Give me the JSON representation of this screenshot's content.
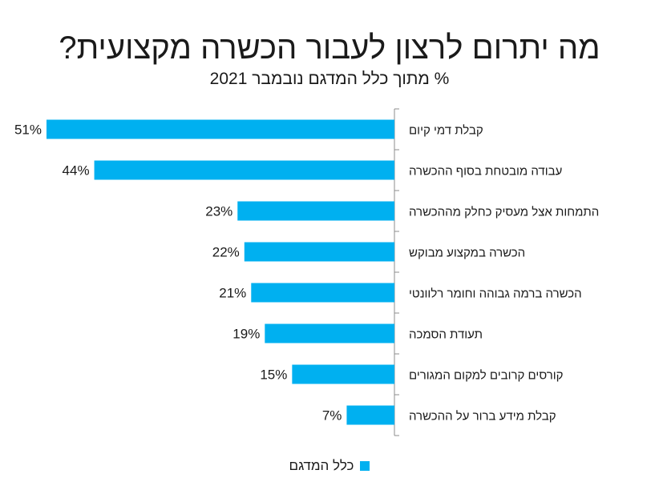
{
  "chart_data": {
    "type": "bar",
    "orientation": "horizontal",
    "title": "מה יתרום לרצון לעבור הכשרה מקצועית?",
    "subtitle": "% מתוך כלל המדגם נובמבר 2021",
    "categories": [
      "קבלת דמי קיום",
      "עבודה מובטחת בסוף ההכשרה",
      "התמחות אצל מעסיק כחלק מההכשרה",
      "הכשרה במקצוע מבוקש",
      "הכשרה ברמה גבוהה וחומר רלוונטי",
      "תעודת הסמכה",
      "קורסים קרובים למקום המגורים",
      "קבלת מידע ברור על ההכשרה"
    ],
    "series": [
      {
        "name": "כלל המדגם",
        "values": [
          51,
          44,
          23,
          22,
          21,
          19,
          15,
          7
        ],
        "color": "#00b0f0"
      }
    ],
    "value_labels": [
      "51%",
      "44%",
      "23%",
      "22%",
      "21%",
      "19%",
      "15%",
      "7%"
    ],
    "xlim": [
      0,
      51
    ],
    "bar_direction": "right-to-left",
    "grid": false,
    "legend": {
      "position": "bottom",
      "label": "כלל המדגם"
    }
  }
}
